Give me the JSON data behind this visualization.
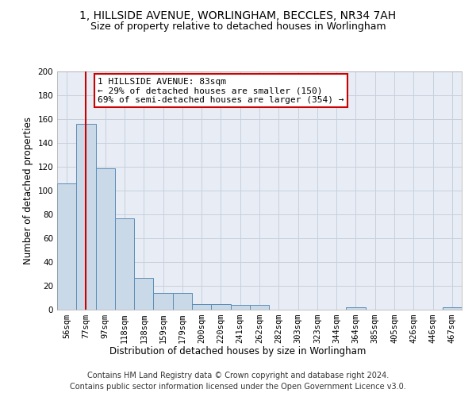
{
  "title_line1": "1, HILLSIDE AVENUE, WORLINGHAM, BECCLES, NR34 7AH",
  "title_line2": "Size of property relative to detached houses in Worlingham",
  "xlabel": "Distribution of detached houses by size in Worlingham",
  "ylabel": "Number of detached properties",
  "categories": [
    "56sqm",
    "77sqm",
    "97sqm",
    "118sqm",
    "138sqm",
    "159sqm",
    "179sqm",
    "200sqm",
    "220sqm",
    "241sqm",
    "262sqm",
    "282sqm",
    "303sqm",
    "323sqm",
    "344sqm",
    "364sqm",
    "385sqm",
    "405sqm",
    "426sqm",
    "446sqm",
    "467sqm"
  ],
  "values": [
    106,
    156,
    119,
    77,
    27,
    14,
    14,
    5,
    5,
    4,
    4,
    0,
    0,
    0,
    0,
    2,
    0,
    0,
    0,
    0,
    2
  ],
  "bar_color": "#c9d9e8",
  "bar_edge_color": "#5b8db8",
  "vline_x": 1,
  "vline_color": "#cc0000",
  "annotation_line1": "1 HILLSIDE AVENUE: 83sqm",
  "annotation_line2": "← 29% of detached houses are smaller (150)",
  "annotation_line3": "69% of semi-detached houses are larger (354) →",
  "annotation_box_color": "#ffffff",
  "annotation_box_edge_color": "#cc0000",
  "ylim": [
    0,
    200
  ],
  "yticks": [
    0,
    20,
    40,
    60,
    80,
    100,
    120,
    140,
    160,
    180,
    200
  ],
  "grid_color": "#c8d0dc",
  "background_color": "#e8edf5",
  "footer_line1": "Contains HM Land Registry data © Crown copyright and database right 2024.",
  "footer_line2": "Contains public sector information licensed under the Open Government Licence v3.0.",
  "title_fontsize": 10,
  "subtitle_fontsize": 9,
  "axis_label_fontsize": 8.5,
  "tick_fontsize": 7.5,
  "annotation_fontsize": 8,
  "footer_fontsize": 7
}
